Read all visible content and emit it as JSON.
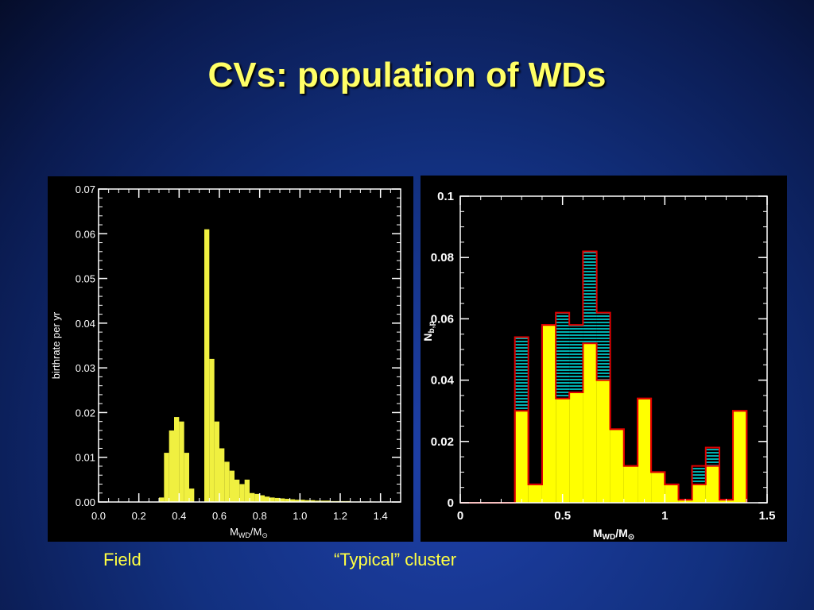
{
  "slide": {
    "title": "CVs: population of WDs",
    "captions": {
      "left": "Field",
      "right": "“Typical” cluster"
    }
  },
  "colors": {
    "bar_fill": "#ffff00",
    "bar_fill_field": "#f0f040",
    "outline_red": "#e00000",
    "hatch_teal": "#00b0b0",
    "caption": "#ffff44",
    "title": "#ffff66"
  },
  "chart_data": [
    {
      "type": "bar",
      "panel": "field",
      "xlabel": "M_WD/M_⊙",
      "ylabel": "birthrate per yr",
      "xlim": [
        0.0,
        1.5
      ],
      "ylim": [
        0.0,
        0.07
      ],
      "xticks": [
        "0.0",
        "0.2",
        "0.4",
        "0.6",
        "0.8",
        "1.0",
        "1.2",
        "1.4"
      ],
      "yticks": [
        "0.00",
        "0.01",
        "0.02",
        "0.03",
        "0.04",
        "0.05",
        "0.06",
        "0.07"
      ],
      "bin_width": 0.025,
      "series": [
        {
          "bins": [
            [
              0.3,
              0.001
            ],
            [
              0.325,
              0.011
            ],
            [
              0.35,
              0.016
            ],
            [
              0.375,
              0.019
            ],
            [
              0.4,
              0.018
            ],
            [
              0.425,
              0.011
            ],
            [
              0.45,
              0.003
            ],
            [
              0.525,
              0.061
            ],
            [
              0.55,
              0.032
            ],
            [
              0.575,
              0.018
            ],
            [
              0.6,
              0.012
            ],
            [
              0.625,
              0.009
            ],
            [
              0.65,
              0.007
            ],
            [
              0.675,
              0.005
            ],
            [
              0.7,
              0.004
            ],
            [
              0.725,
              0.005
            ],
            [
              0.75,
              0.002
            ],
            [
              0.775,
              0.0018
            ],
            [
              0.8,
              0.0015
            ],
            [
              0.825,
              0.0012
            ],
            [
              0.85,
              0.001
            ],
            [
              0.875,
              0.0009
            ],
            [
              0.9,
              0.0008
            ],
            [
              0.925,
              0.0007
            ],
            [
              0.95,
              0.0006
            ],
            [
              0.975,
              0.0005
            ],
            [
              1.0,
              0.0005
            ],
            [
              1.025,
              0.0004
            ],
            [
              1.05,
              0.0004
            ],
            [
              1.075,
              0.0003
            ],
            [
              1.1,
              0.0003
            ],
            [
              1.125,
              0.0003
            ],
            [
              1.15,
              0.0002
            ],
            [
              1.175,
              0.0002
            ],
            [
              1.2,
              0.0002
            ],
            [
              1.225,
              0.0002
            ],
            [
              1.25,
              0.0001
            ],
            [
              1.275,
              0.0001
            ],
            [
              1.3,
              0.0001
            ],
            [
              1.325,
              0.0001
            ],
            [
              1.35,
              0.0001
            ]
          ]
        }
      ]
    },
    {
      "type": "bar",
      "panel": "cluster",
      "xlabel": "M_WD/M_⊙",
      "ylabel": "N_b,p",
      "xlim": [
        0,
        1.5
      ],
      "ylim": [
        0,
        0.1
      ],
      "xticks": [
        "0",
        "0.5",
        "1",
        "1.5"
      ],
      "yticks": [
        "0",
        "0.02",
        "0.04",
        "0.06",
        "0.08",
        "0.1"
      ],
      "bin_width": 0.0667,
      "edges": [
        0.0,
        0.267,
        0.333,
        0.4,
        0.467,
        0.533,
        0.6,
        0.667,
        0.733,
        0.8,
        0.867,
        0.933,
        1.0,
        1.067,
        1.133,
        1.2,
        1.267,
        1.333,
        1.4
      ],
      "series": [
        {
          "name": "filled",
          "values": [
            0.0,
            0.03,
            0.006,
            0.058,
            0.034,
            0.036,
            0.052,
            0.04,
            0.024,
            0.012,
            0.034,
            0.01,
            0.006,
            0.001,
            0.006,
            0.012,
            0.001,
            0.03
          ]
        },
        {
          "name": "hatched",
          "values": [
            0.0,
            0.054,
            0.006,
            0.058,
            0.062,
            0.058,
            0.082,
            0.062,
            0.024,
            0.012,
            0.034,
            0.01,
            0.006,
            0.001,
            0.012,
            0.018,
            0.001,
            0.03
          ]
        }
      ]
    }
  ]
}
